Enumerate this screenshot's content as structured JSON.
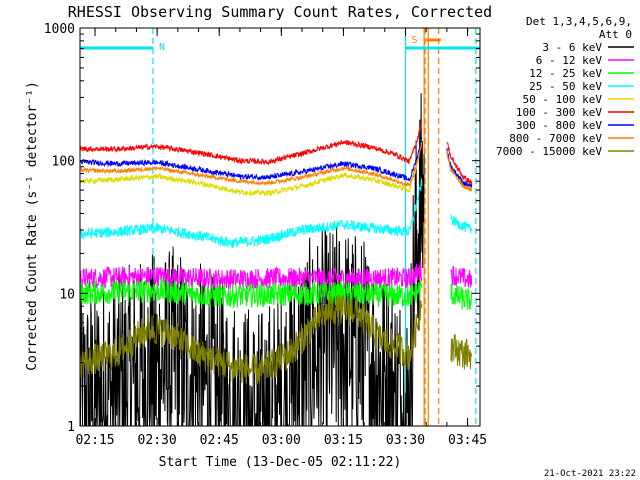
{
  "chart_data": {
    "type": "line",
    "title": "RHESSI Observing Summary Count Rates, Corrected",
    "ylabel": "Corrected Count Rate (s⁻¹ detector⁻¹)",
    "xlabel": "Start Time (13-Dec-05 02:11:22)",
    "yscale": "log",
    "ylim": [
      1,
      1000
    ],
    "xlim": [
      "02:11:22",
      "03:48:00"
    ],
    "y_ticks": [
      "1",
      "10",
      "100",
      "1000"
    ],
    "x_ticks": [
      "02:15",
      "02:30",
      "02:45",
      "03:00",
      "03:15",
      "03:30",
      "03:45"
    ],
    "legend": {
      "placement": "right",
      "header_1": "Det 1,3,4,5,6,9,",
      "header_2": "Att 0"
    },
    "annotations": {
      "night_label": "N",
      "saa_label": "S",
      "timestamp": "21-Oct-2021 23:22"
    },
    "bars": {
      "night": {
        "from": "02:11:22",
        "to": "02:29:00",
        "color": "#00e5ee"
      },
      "saa": {
        "from": "03:30:00",
        "to": "03:48:00",
        "color": "#00e5ee"
      }
    },
    "vlines": [
      {
        "time": "02:29:00",
        "color": "#00e5ee",
        "style": "dash"
      },
      {
        "time": "03:30:00",
        "color": "#00e5ee",
        "style": "solid"
      },
      {
        "time": "03:47:00",
        "color": "#00e5ee",
        "style": "dash"
      },
      {
        "time": "03:34:30",
        "color": "#ff7f00",
        "style": "solid"
      },
      {
        "time": "03:35:30",
        "color": "#ff7f00",
        "style": "solid"
      },
      {
        "time": "03:34:45",
        "color": "#ff7f00",
        "style": "dash"
      },
      {
        "time": "03:38:00",
        "color": "#ff7f00",
        "style": "dash"
      }
    ],
    "series": [
      {
        "name": "3 - 6 keV",
        "color": "#000000",
        "noise": 0.9,
        "points": [
          [
            "02:11:22",
            1.4
          ],
          [
            "02:20:00",
            1.8
          ],
          [
            "02:28:00",
            2.6
          ],
          [
            "02:35:00",
            3.0
          ],
          [
            "02:42:00",
            2.0
          ],
          [
            "02:50:00",
            1.2
          ],
          [
            "02:55:00",
            1.0
          ],
          [
            "03:00:00",
            1.5
          ],
          [
            "03:05:00",
            3.0
          ],
          [
            "03:10:00",
            4.0
          ],
          [
            "03:15:00",
            4.5
          ],
          [
            "03:20:00",
            3.5
          ],
          [
            "03:25:00",
            2.2
          ],
          [
            "03:31:00",
            1.2
          ],
          [
            "03:32:00",
            15
          ],
          [
            "03:33:30",
            40
          ],
          [
            "03:34:30",
            60
          ]
        ]
      },
      {
        "name": "6 - 12 keV",
        "color": "#ff00ff",
        "noise": 0.08,
        "points": [
          [
            "02:11:22",
            13
          ],
          [
            "02:30:00",
            13.5
          ],
          [
            "02:45:00",
            12.8
          ],
          [
            "03:00:00",
            13
          ],
          [
            "03:15:00",
            13
          ],
          [
            "03:31:00",
            13
          ],
          [
            "03:34:00",
            15
          ]
        ],
        "tail": [
          [
            "03:41:00",
            14
          ],
          [
            "03:44:00",
            13
          ],
          [
            "03:46:00",
            12.5
          ]
        ]
      },
      {
        "name": "12 - 25 keV",
        "color": "#00ff00",
        "noise": 0.09,
        "points": [
          [
            "02:11:22",
            10
          ],
          [
            "02:30:00",
            10.5
          ],
          [
            "02:45:00",
            9.5
          ],
          [
            "03:00:00",
            9.8
          ],
          [
            "03:15:00",
            10
          ],
          [
            "03:31:00",
            9.5
          ],
          [
            "03:34:00",
            11
          ]
        ],
        "tail": [
          [
            "03:41:00",
            10
          ],
          [
            "03:44:00",
            9
          ],
          [
            "03:46:00",
            8.8
          ]
        ]
      },
      {
        "name": "25 - 50 keV",
        "color": "#00ffff",
        "noise": 0.04,
        "points": [
          [
            "02:11:22",
            28
          ],
          [
            "02:20:00",
            29
          ],
          [
            "02:30:00",
            31
          ],
          [
            "02:38:00",
            28
          ],
          [
            "02:48:00",
            24
          ],
          [
            "02:55:00",
            25
          ],
          [
            "03:05:00",
            30
          ],
          [
            "03:15:00",
            33
          ],
          [
            "03:22:00",
            31
          ],
          [
            "03:31:00",
            29
          ],
          [
            "03:32:30",
            45
          ],
          [
            "03:34:00",
            70
          ]
        ],
        "tail": [
          [
            "03:41:00",
            36
          ],
          [
            "03:44:00",
            32
          ],
          [
            "03:46:00",
            30
          ]
        ]
      },
      {
        "name": "50 - 100 keV",
        "color": "#dddd00",
        "noise": 0.02,
        "points": [
          [
            "02:11:22",
            70
          ],
          [
            "02:20:00",
            72
          ],
          [
            "02:30:00",
            76
          ],
          [
            "02:40:00",
            68
          ],
          [
            "02:50:00",
            58
          ],
          [
            "02:57:00",
            57
          ],
          [
            "03:05:00",
            64
          ],
          [
            "03:15:00",
            78
          ],
          [
            "03:22:00",
            72
          ],
          [
            "03:28:00",
            64
          ],
          [
            "03:31:00",
            60
          ],
          [
            "03:33:00",
            100
          ],
          [
            "03:34:00",
            140
          ]
        ],
        "tail": [
          [
            "03:40:00",
            120
          ],
          [
            "03:41:00",
            90
          ],
          [
            "03:44:00",
            68
          ],
          [
            "03:46:00",
            62
          ]
        ]
      },
      {
        "name": "100 - 300 keV",
        "color": "#ff0000",
        "noise": 0.02,
        "points": [
          [
            "02:11:22",
            123
          ],
          [
            "02:20:00",
            122
          ],
          [
            "02:30:00",
            128
          ],
          [
            "02:40:00",
            115
          ],
          [
            "02:50:00",
            100
          ],
          [
            "02:57:00",
            98
          ],
          [
            "03:05:00",
            113
          ],
          [
            "03:15:00",
            138
          ],
          [
            "03:22:00",
            126
          ],
          [
            "03:28:00",
            110
          ],
          [
            "03:31:00",
            98
          ],
          [
            "03:33:00",
            150
          ],
          [
            "03:34:00",
            200
          ]
        ],
        "tail": [
          [
            "03:40:00",
            140
          ],
          [
            "03:41:00",
            105
          ],
          [
            "03:44:00",
            75
          ],
          [
            "03:46:00",
            68
          ]
        ]
      },
      {
        "name": "300 - 800 keV",
        "color": "#0000ff",
        "noise": 0.02,
        "points": [
          [
            "02:11:22",
            98
          ],
          [
            "02:20:00",
            95
          ],
          [
            "02:30:00",
            97
          ],
          [
            "02:40:00",
            86
          ],
          [
            "02:50:00",
            76
          ],
          [
            "02:57:00",
            75
          ],
          [
            "03:05:00",
            82
          ],
          [
            "03:15:00",
            95
          ],
          [
            "03:22:00",
            88
          ],
          [
            "03:28:00",
            78
          ],
          [
            "03:31:00",
            72
          ],
          [
            "03:33:00",
            110
          ],
          [
            "03:34:00",
            150
          ]
        ],
        "tail": [
          [
            "03:40:00",
            120
          ],
          [
            "03:41:00",
            90
          ],
          [
            "03:44:00",
            68
          ],
          [
            "03:46:00",
            64
          ]
        ]
      },
      {
        "name": "800 - 7000 keV",
        "color": "#ff7f00",
        "noise": 0.015,
        "points": [
          [
            "02:11:22",
            85
          ],
          [
            "02:20:00",
            83
          ],
          [
            "02:30:00",
            88
          ],
          [
            "02:40:00",
            78
          ],
          [
            "02:50:00",
            70
          ],
          [
            "02:57:00",
            68
          ],
          [
            "03:05:00",
            75
          ],
          [
            "03:15:00",
            88
          ],
          [
            "03:22:00",
            80
          ],
          [
            "03:28:00",
            70
          ],
          [
            "03:31:00",
            65
          ],
          [
            "03:33:00",
            100
          ],
          [
            "03:34:00",
            140
          ]
        ],
        "tail": [
          [
            "03:40:00",
            115
          ],
          [
            "03:41:00",
            85
          ],
          [
            "03:44:00",
            64
          ],
          [
            "03:46:00",
            60
          ]
        ]
      },
      {
        "name": "7000 - 15000 keV",
        "color": "#808000",
        "noise": 0.12,
        "points": [
          [
            "02:11:22",
            3.0
          ],
          [
            "02:20:00",
            3.5
          ],
          [
            "02:28:00",
            5.5
          ],
          [
            "02:33:00",
            5.0
          ],
          [
            "02:40:00",
            3.5
          ],
          [
            "02:48:00",
            2.8
          ],
          [
            "02:55:00",
            2.6
          ],
          [
            "03:02:00",
            3.5
          ],
          [
            "03:08:00",
            6.0
          ],
          [
            "03:12:00",
            7.5
          ],
          [
            "03:18:00",
            7.5
          ],
          [
            "03:24:00",
            4.5
          ],
          [
            "03:31:00",
            3.5
          ],
          [
            "03:33:00",
            6
          ],
          [
            "03:34:00",
            10
          ]
        ],
        "tail": [
          [
            "03:41:00",
            4
          ],
          [
            "03:44:00",
            3.5
          ],
          [
            "03:46:00",
            3.5
          ]
        ]
      }
    ]
  }
}
